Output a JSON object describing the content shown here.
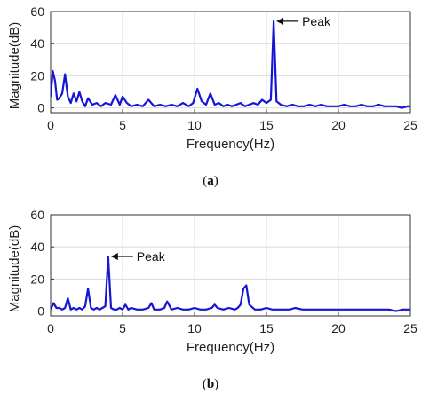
{
  "chart_data": [
    {
      "type": "line",
      "caption": "(a)",
      "caption_open": "(",
      "caption_letter": "a",
      "caption_close": ")",
      "xlabel": "Frequency(Hz)",
      "ylabel": "Magnitude(dB)",
      "xlim": [
        0,
        25
      ],
      "ylim": [
        -3,
        60
      ],
      "xticks": [
        0,
        5,
        10,
        15,
        20,
        25
      ],
      "yticks": [
        0,
        20,
        40,
        60
      ],
      "grid": true,
      "line_color": "#1515d6",
      "annotation": {
        "text": "Peak",
        "x": 15.5,
        "y": 54
      },
      "series": [
        {
          "x": [
            0,
            0.15,
            0.3,
            0.45,
            0.6,
            0.8,
            1.0,
            1.2,
            1.4,
            1.6,
            1.8,
            2.0,
            2.2,
            2.4,
            2.6,
            2.9,
            3.2,
            3.5,
            3.8,
            4.2,
            4.5,
            4.8,
            5.0,
            5.3,
            5.6,
            6.0,
            6.4,
            6.8,
            7.2,
            7.6,
            8.0,
            8.4,
            8.8,
            9.2,
            9.6,
            9.9,
            10.2,
            10.5,
            10.8,
            11.1,
            11.4,
            11.7,
            12.0,
            12.3,
            12.6,
            12.9,
            13.2,
            13.5,
            13.8,
            14.1,
            14.4,
            14.7,
            15.0,
            15.3,
            15.5,
            15.7,
            16.0,
            16.4,
            16.8,
            17.2,
            17.6,
            18.0,
            18.4,
            18.8,
            19.2,
            19.6,
            20.0,
            20.4,
            20.8,
            21.2,
            21.6,
            22.0,
            22.4,
            22.8,
            23.2,
            23.6,
            24.0,
            24.4,
            24.8,
            25.0
          ],
          "values": [
            7,
            23,
            17,
            5,
            6,
            9,
            21,
            7,
            3,
            9,
            4,
            10,
            4,
            1,
            6,
            2,
            3,
            1,
            3,
            2,
            8,
            2,
            7,
            3,
            1,
            2,
            1,
            5,
            1,
            2,
            1,
            2,
            1,
            3,
            1,
            3,
            12,
            4,
            2,
            9,
            2,
            3,
            1,
            2,
            1,
            2,
            3,
            1,
            2,
            3,
            2,
            5,
            3,
            5,
            54,
            4,
            2,
            1,
            2,
            1,
            1,
            2,
            1,
            2,
            1,
            1,
            1,
            2,
            1,
            1,
            2,
            1,
            1,
            2,
            1,
            1,
            1,
            0,
            1,
            1
          ]
        }
      ]
    },
    {
      "type": "line",
      "caption": "(b)",
      "caption_open": "(",
      "caption_letter": "b",
      "caption_close": ")",
      "xlabel": "Frequency(Hz)",
      "ylabel": "Magnitude(dB)",
      "xlim": [
        0,
        25
      ],
      "ylim": [
        -3,
        60
      ],
      "xticks": [
        0,
        5,
        10,
        15,
        20,
        25
      ],
      "yticks": [
        0,
        20,
        40,
        60
      ],
      "grid": true,
      "line_color": "#1515d6",
      "annotation": {
        "text": "Peak",
        "x": 4.0,
        "y": 34
      },
      "series": [
        {
          "x": [
            0,
            0.2,
            0.4,
            0.6,
            0.8,
            1.0,
            1.2,
            1.4,
            1.6,
            1.8,
            2.0,
            2.2,
            2.4,
            2.6,
            2.8,
            3.0,
            3.2,
            3.4,
            3.6,
            3.8,
            4.0,
            4.2,
            4.4,
            4.6,
            4.8,
            5.0,
            5.2,
            5.4,
            5.6,
            6.0,
            6.4,
            6.8,
            7.0,
            7.2,
            7.6,
            7.9,
            8.1,
            8.4,
            8.8,
            9.2,
            9.6,
            10.0,
            10.4,
            10.8,
            11.2,
            11.4,
            11.6,
            12.0,
            12.4,
            12.8,
            13.0,
            13.2,
            13.4,
            13.6,
            13.8,
            14.2,
            14.6,
            15.0,
            15.4,
            15.8,
            16.2,
            16.6,
            17.0,
            17.5,
            18.0,
            18.5,
            19.0,
            19.5,
            20.0,
            20.5,
            21.0,
            21.5,
            22.0,
            22.5,
            23.0,
            23.5,
            24.0,
            24.5,
            25.0
          ],
          "values": [
            1,
            5,
            2,
            2,
            1,
            2,
            8,
            1,
            2,
            1,
            2,
            1,
            3,
            14,
            2,
            1,
            2,
            1,
            2,
            3,
            34,
            2,
            1,
            1,
            2,
            1,
            4,
            1,
            2,
            1,
            1,
            2,
            5,
            1,
            1,
            2,
            6,
            1,
            2,
            1,
            1,
            2,
            1,
            1,
            2,
            4,
            2,
            1,
            2,
            1,
            2,
            4,
            14,
            16,
            4,
            1,
            1,
            2,
            1,
            1,
            1,
            1,
            2,
            1,
            1,
            1,
            1,
            1,
            1,
            1,
            1,
            1,
            1,
            1,
            1,
            1,
            0,
            1,
            1
          ]
        }
      ]
    }
  ]
}
